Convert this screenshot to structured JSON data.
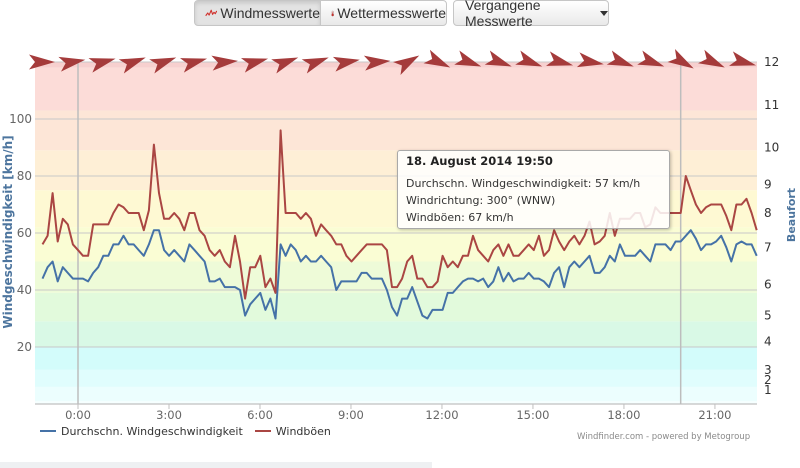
{
  "toolbar": {
    "tabs": [
      {
        "label": "Windmesswerte",
        "icon": "wind-chart-icon",
        "active": true
      },
      {
        "label": "Wettermesswerte",
        "icon": "thermometer-icon",
        "active": false
      }
    ],
    "dropdown": {
      "label": "Vergangene Messwerte",
      "icon": "caret-down-icon"
    }
  },
  "tooltip": {
    "title": "18. August 2014 19:50",
    "lines": [
      "Durchschn. Windgeschwindigkeit: 57 km/h",
      "Windrichtung: 300° (WNW)",
      "Windböen: 67 km/h"
    ]
  },
  "legend": [
    {
      "label": "Durchschn. Windgeschwindigkeit",
      "color": "#4572A7"
    },
    {
      "label": "Windböen",
      "color": "#AA4643"
    }
  ],
  "credits": "Windfinder.com - powered by Metogroup",
  "colors": {
    "avg_line": "#4572A7",
    "gust_line": "#AA4643",
    "arrow": "#A53B3B",
    "grid": "#c8c8c8",
    "axis_title": "#4d759e",
    "tick_label": "#666666"
  },
  "chart_data": {
    "type": "line",
    "title": "",
    "xlabel": "",
    "ylabel": "Windgeschwindigkeit [km/h]",
    "ylabel_right": "Beaufort",
    "ylim": [
      0,
      120
    ],
    "grid": true,
    "legend_position": "bottom-left",
    "y_ticks": [
      20,
      40,
      60,
      80,
      100
    ],
    "x_ticks": [
      {
        "label": "0:00",
        "hour": 0
      },
      {
        "label": "3:00",
        "hour": 3
      },
      {
        "label": "6:00",
        "hour": 6
      },
      {
        "label": "9:00",
        "hour": 9
      },
      {
        "label": "12:00",
        "hour": 12
      },
      {
        "label": "15:00",
        "hour": 15
      },
      {
        "label": "18:00",
        "hour": 18
      },
      {
        "label": "21:00",
        "hour": 21
      }
    ],
    "x_start": "22:50 (Vortag)",
    "x_step_minutes": 10,
    "x_end": "22:20",
    "series": [
      {
        "name": "Durchschn. Windgeschwindigkeit",
        "unit": "km/h",
        "values": [
          44,
          48,
          50,
          43,
          48,
          46,
          44,
          44,
          44,
          43,
          46,
          48,
          52,
          52,
          56,
          56,
          59,
          56,
          56,
          54,
          52,
          56,
          61,
          61,
          54,
          52,
          54,
          52,
          50,
          56,
          54,
          52,
          50,
          43,
          43,
          44,
          41,
          41,
          41,
          40,
          31,
          35,
          37,
          39,
          33,
          37,
          30,
          56,
          52,
          56,
          54,
          50,
          52,
          50,
          50,
          52,
          50,
          48,
          40,
          43,
          43,
          43,
          43,
          46,
          46,
          44,
          44,
          44,
          40,
          34,
          31,
          37,
          37,
          41,
          36,
          31,
          30,
          33,
          33,
          33,
          39,
          39,
          41,
          43,
          44,
          44,
          43,
          44,
          41,
          43,
          48,
          43,
          46,
          43,
          44,
          44,
          46,
          44,
          44,
          43,
          41,
          46,
          48,
          41,
          48,
          50,
          48,
          50,
          52,
          46,
          46,
          48,
          52,
          50,
          56,
          52,
          52,
          52,
          54,
          52,
          50,
          56,
          56,
          56,
          54,
          57,
          57,
          59,
          61,
          58,
          54,
          56,
          56,
          57,
          59,
          55,
          50,
          56,
          57,
          56,
          56,
          52
        ]
      },
      {
        "name": "Windböen",
        "unit": "km/h",
        "values": [
          56,
          59,
          74,
          57,
          65,
          63,
          56,
          54,
          52,
          52,
          63,
          63,
          63,
          63,
          67,
          70,
          69,
          67,
          67,
          67,
          61,
          68,
          91,
          74,
          65,
          65,
          67,
          65,
          61,
          67,
          67,
          61,
          59,
          54,
          52,
          54,
          50,
          48,
          59,
          50,
          37,
          48,
          48,
          52,
          41,
          44,
          39,
          96,
          67,
          67,
          67,
          65,
          67,
          65,
          59,
          63,
          61,
          59,
          56,
          56,
          52,
          50,
          52,
          54,
          56,
          56,
          56,
          56,
          54,
          41,
          41,
          44,
          50,
          52,
          44,
          44,
          41,
          41,
          43,
          52,
          48,
          50,
          48,
          52,
          52,
          59,
          54,
          52,
          50,
          54,
          56,
          52,
          56,
          52,
          52,
          54,
          56,
          54,
          59,
          52,
          54,
          61,
          57,
          54,
          57,
          59,
          56,
          59,
          64,
          56,
          57,
          59,
          67,
          59,
          65,
          65,
          65,
          67,
          67,
          62,
          63,
          69,
          67,
          67,
          67,
          67,
          67,
          80,
          75,
          70,
          67,
          69,
          70,
          70,
          70,
          66,
          61,
          70,
          70,
          72,
          67,
          61
        ]
      }
    ],
    "wind_direction": {
      "unit": "deg",
      "interval": "hourly",
      "values": [
        270,
        260,
        255,
        250,
        250,
        255,
        265,
        255,
        250,
        250,
        260,
        265,
        240,
        295,
        290,
        290,
        290,
        285,
        280,
        290,
        290,
        300,
        295,
        285
      ]
    },
    "beaufort_bands": [
      {
        "bft": 0,
        "from_kmh": 0,
        "color": "#f6ffff",
        "label": null,
        "label_at_kmh": null
      },
      {
        "bft": 1,
        "from_kmh": 1,
        "color": "#ecfefe",
        "label": "1",
        "label_at_kmh": 5
      },
      {
        "bft": 2,
        "from_kmh": 6,
        "color": "#e0fdfd",
        "label": "2",
        "label_at_kmh": 8.5
      },
      {
        "bft": 3,
        "from_kmh": 12,
        "color": "#d3fcfb",
        "label": "3",
        "label_at_kmh": 12
      },
      {
        "bft": 4,
        "from_kmh": 20,
        "color": "#d9f9e6",
        "label": "4",
        "label_at_kmh": 22
      },
      {
        "bft": 5,
        "from_kmh": 29,
        "color": "#e2fadc",
        "label": "5",
        "label_at_kmh": 31
      },
      {
        "bft": 6,
        "from_kmh": 39,
        "color": "#eefbd8",
        "label": "6",
        "label_at_kmh": 42
      },
      {
        "bft": 7,
        "from_kmh": 50,
        "color": "#fafdd4",
        "label": "7",
        "label_at_kmh": 55
      },
      {
        "bft": 8,
        "from_kmh": 62,
        "color": "#fef9d3",
        "label": "8",
        "label_at_kmh": 67
      },
      {
        "bft": 9,
        "from_kmh": 75,
        "color": "#feefd6",
        "label": "9",
        "label_at_kmh": 77
      },
      {
        "bft": 10,
        "from_kmh": 89,
        "color": "#fde6d7",
        "label": "10",
        "label_at_kmh": 90
      },
      {
        "bft": 11,
        "from_kmh": 103,
        "color": "#fcdcd8",
        "label": "11",
        "label_at_kmh": 105
      },
      {
        "bft": 12,
        "from_kmh": 118,
        "color": "#f7d0cf",
        "label": "12",
        "label_at_kmh": 120
      }
    ],
    "crosshair": {
      "time": "19:50",
      "index": 126
    },
    "day_divider_hour": 0
  }
}
